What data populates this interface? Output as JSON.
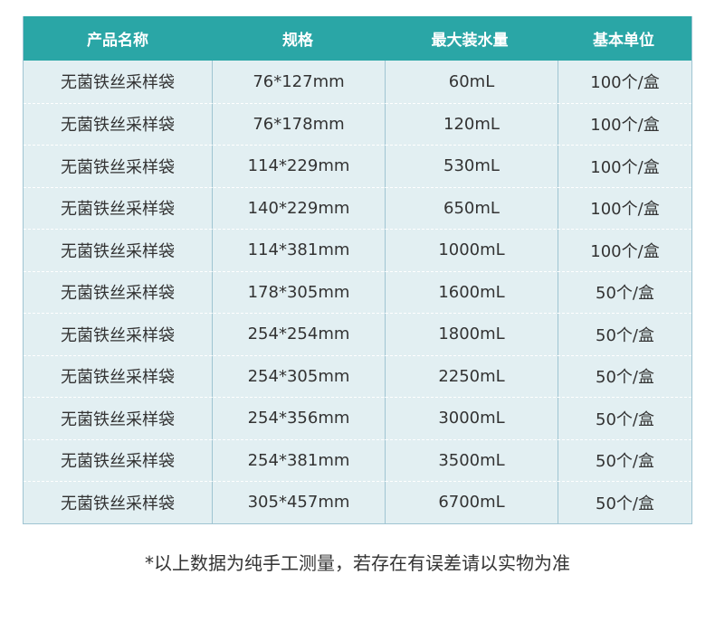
{
  "table": {
    "headers": [
      "产品名称",
      "规格",
      "最大装水量",
      "基本单位"
    ],
    "rows": [
      [
        "无菌铁丝采样袋",
        "76*127mm",
        "60mL",
        "100个/盒"
      ],
      [
        "无菌铁丝采样袋",
        "76*178mm",
        "120mL",
        "100个/盒"
      ],
      [
        "无菌铁丝采样袋",
        "114*229mm",
        "530mL",
        "100个/盒"
      ],
      [
        "无菌铁丝采样袋",
        "140*229mm",
        "650mL",
        "100个/盒"
      ],
      [
        "无菌铁丝采样袋",
        "114*381mm",
        "1000mL",
        "100个/盒"
      ],
      [
        "无菌铁丝采样袋",
        "178*305mm",
        "1600mL",
        "50个/盒"
      ],
      [
        "无菌铁丝采样袋",
        "254*254mm",
        "1800mL",
        "50个/盒"
      ],
      [
        "无菌铁丝采样袋",
        "254*305mm",
        "2250mL",
        "50个/盒"
      ],
      [
        "无菌铁丝采样袋",
        "254*356mm",
        "3000mL",
        "50个/盒"
      ],
      [
        "无菌铁丝采样袋",
        "254*381mm",
        "3500mL",
        "50个/盒"
      ],
      [
        "无菌铁丝采样袋",
        "305*457mm",
        "6700mL",
        "50个/盒"
      ]
    ]
  },
  "footnote": "*以上数据为纯手工测量，若存在有误差请以实物为准",
  "colors": {
    "header": "#2aa6a6",
    "body": "#e2eff2"
  }
}
